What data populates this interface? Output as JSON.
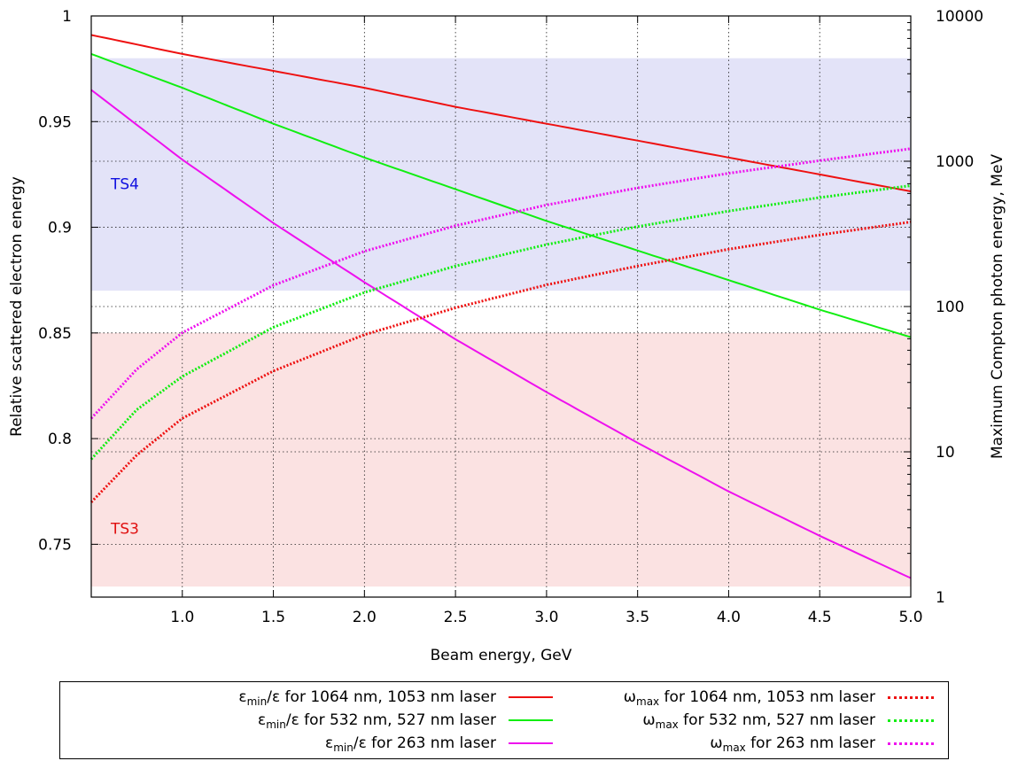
{
  "chart_data": {
    "type": "line",
    "xlabel": "Beam energy, GeV",
    "ylabel": "Relative scattered electron energy",
    "y2label": "Maximum Compton photon energy, MeV",
    "xlim": [
      0.5,
      5.0
    ],
    "ylim": [
      0.725,
      1.0
    ],
    "y2lim": [
      1,
      10000
    ],
    "y2_scale": "log",
    "x_ticks": [
      "1.0",
      "1.5",
      "2.0",
      "2.5",
      "3.0",
      "3.5",
      "4.0",
      "4.5",
      "5.0"
    ],
    "y_ticks": [
      "0.75",
      "0.8",
      "0.85",
      "0.9",
      "0.95",
      "1"
    ],
    "y2_ticks": [
      "1",
      "10",
      "100",
      "1000",
      "10000"
    ],
    "grid": true,
    "legend_position": "bottom",
    "bands": [
      {
        "label": "TS4",
        "y_from": 0.87,
        "y_to": 0.98,
        "color": "#e3e3f8",
        "label_color": "#1010e0"
      },
      {
        "label": "TS3",
        "y_from": 0.73,
        "y_to": 0.85,
        "color": "#fbe2e2",
        "label_color": "#e01010"
      }
    ],
    "series": [
      {
        "name": "1064 nm, 1053 nm laser",
        "axis": "left",
        "style": "solid",
        "color": "#ee1111",
        "x": [
          0.5,
          1.0,
          1.5,
          2.0,
          2.5,
          3.0,
          3.5,
          4.0,
          4.5,
          5.0
        ],
        "values": [
          0.991,
          0.982,
          0.974,
          0.966,
          0.957,
          0.949,
          0.941,
          0.933,
          0.925,
          0.917
        ]
      },
      {
        "name": "532 nm, 527 nm laser",
        "axis": "left",
        "style": "solid",
        "color": "#11ee11",
        "x": [
          0.5,
          1.0,
          1.5,
          2.0,
          2.5,
          3.0,
          3.5,
          4.0,
          4.5,
          5.0
        ],
        "values": [
          0.982,
          0.966,
          0.949,
          0.933,
          0.918,
          0.903,
          0.889,
          0.875,
          0.861,
          0.848
        ]
      },
      {
        "name": "263 nm laser",
        "axis": "left",
        "style": "solid",
        "color": "#ee11ee",
        "x": [
          0.5,
          1.0,
          1.5,
          2.0,
          2.5,
          3.0,
          3.5,
          4.0,
          4.5,
          5.0
        ],
        "values": [
          0.965,
          0.932,
          0.902,
          0.874,
          0.847,
          0.822,
          0.798,
          0.775,
          0.754,
          0.734
        ]
      },
      {
        "name": "1064 nm, 1053 nm laser",
        "axis": "right",
        "style": "dotted",
        "color": "#ee1111",
        "x": [
          0.5,
          0.75,
          1.0,
          1.5,
          2.0,
          2.5,
          3.0,
          3.5,
          4.0,
          4.5,
          5.0
        ],
        "values": [
          4.5,
          9.5,
          17,
          36,
          64,
          98,
          141,
          190,
          248,
          311,
          382
        ]
      },
      {
        "name": "532 nm, 527 nm laser",
        "axis": "right",
        "style": "dotted",
        "color": "#11ee11",
        "x": [
          0.5,
          0.75,
          1.0,
          1.5,
          2.0,
          2.5,
          3.0,
          3.5,
          4.0,
          4.5,
          5.0
        ],
        "values": [
          8.9,
          19.5,
          33,
          72,
          125,
          190,
          267,
          355,
          454,
          562,
          680
        ]
      },
      {
        "name": "263 nm laser",
        "axis": "right",
        "style": "dotted",
        "color": "#ee11ee",
        "x": [
          0.5,
          0.75,
          1.0,
          1.5,
          2.0,
          2.5,
          3.0,
          3.5,
          4.0,
          4.5,
          5.0
        ],
        "values": [
          17,
          37,
          66,
          140,
          240,
          360,
          500,
          655,
          826,
          1010,
          1220
        ]
      }
    ]
  },
  "legend": {
    "items": [
      {
        "prefix": "ε",
        "sub": "min",
        "suffix": "/ε for 1064 nm, 1053 nm laser",
        "color": "#ee1111",
        "style": "solid"
      },
      {
        "prefix": "ε",
        "sub": "min",
        "suffix": "/ε for 532 nm, 527 nm laser",
        "color": "#11ee11",
        "style": "solid"
      },
      {
        "prefix": "ε",
        "sub": "min",
        "suffix": "/ε for 263 nm laser",
        "color": "#ee11ee",
        "style": "solid"
      },
      {
        "prefix": "ω",
        "sub": "max",
        "suffix": " for 1064 nm, 1053 nm laser",
        "color": "#ee1111",
        "style": "dotted"
      },
      {
        "prefix": "ω",
        "sub": "max",
        "suffix": " for 532 nm, 527 nm laser",
        "color": "#11ee11",
        "style": "dotted"
      },
      {
        "prefix": "ω",
        "sub": "max",
        "suffix": " for 263 nm laser",
        "color": "#ee11ee",
        "style": "dotted"
      }
    ]
  }
}
